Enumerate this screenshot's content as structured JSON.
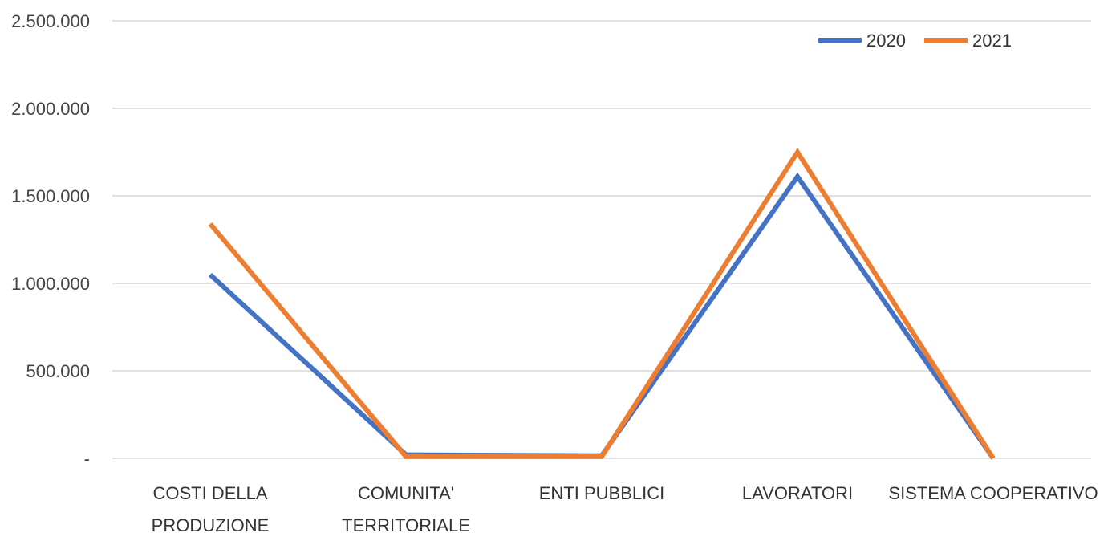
{
  "chart_data": {
    "type": "line",
    "categories": [
      [
        "COSTI DELLA",
        "PRODUZIONE"
      ],
      [
        "COMUNITA'",
        "TERRITORIALE"
      ],
      [
        "ENTI PUBBLICI"
      ],
      [
        "LAVORATORI"
      ],
      [
        "SISTEMA COOPERATIVO"
      ]
    ],
    "series": [
      {
        "name": "2020",
        "color": "#4472c4",
        "values": [
          1050000,
          20000,
          15000,
          1610000,
          0
        ]
      },
      {
        "name": "2021",
        "color": "#ed7d31",
        "values": [
          1340000,
          10000,
          10000,
          1750000,
          0
        ]
      }
    ],
    "ylim": [
      0,
      2500000
    ],
    "yticks": [
      {
        "value": 0,
        "label": "-"
      },
      {
        "value": 500000,
        "label": "500.000"
      },
      {
        "value": 1000000,
        "label": "1.000.000"
      },
      {
        "value": 1500000,
        "label": "1.500.000"
      },
      {
        "value": 2000000,
        "label": "2.000.000"
      },
      {
        "value": 2500000,
        "label": "2.500.000"
      }
    ],
    "grid": true,
    "legend": "top-right",
    "title": "",
    "xlabel": "",
    "ylabel": ""
  }
}
